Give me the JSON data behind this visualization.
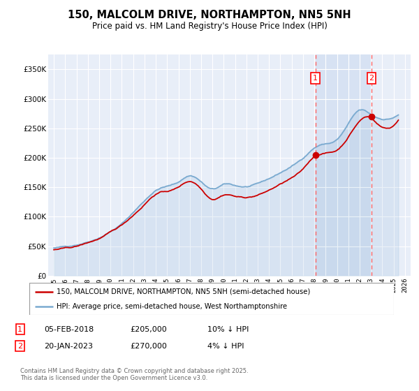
{
  "title": "150, MALCOLM DRIVE, NORTHAMPTON, NN5 5NH",
  "subtitle": "Price paid vs. HM Land Registry's House Price Index (HPI)",
  "red_label": "150, MALCOLM DRIVE, NORTHAMPTON, NN5 5NH (semi-detached house)",
  "blue_label": "HPI: Average price, semi-detached house, West Northamptonshire",
  "transaction1": {
    "label": "1",
    "date": "05-FEB-2018",
    "price": "£205,000",
    "note": "10% ↓ HPI"
  },
  "transaction2": {
    "label": "2",
    "date": "20-JAN-2023",
    "price": "£270,000",
    "note": "4% ↓ HPI"
  },
  "marker1_year": 2018.09,
  "marker2_year": 2023.05,
  "marker1_price": 205000,
  "marker2_price": 270000,
  "copyright": "Contains HM Land Registry data © Crown copyright and database right 2025.\nThis data is licensed under the Open Government Licence v3.0.",
  "ylim": [
    0,
    375000
  ],
  "xlim_start": 1994.5,
  "xlim_end": 2026.5,
  "yticks": [
    0,
    50000,
    100000,
    150000,
    200000,
    250000,
    300000,
    350000
  ],
  "ytick_labels": [
    "£0",
    "£50K",
    "£100K",
    "£150K",
    "£200K",
    "£250K",
    "£300K",
    "£350K"
  ],
  "xticks": [
    1995,
    1996,
    1997,
    1998,
    1999,
    2000,
    2001,
    2002,
    2003,
    2004,
    2005,
    2006,
    2007,
    2008,
    2009,
    2010,
    2011,
    2012,
    2013,
    2014,
    2015,
    2016,
    2017,
    2018,
    2019,
    2020,
    2021,
    2022,
    2023,
    2024,
    2025,
    2026
  ],
  "xtick_labels": [
    "1995",
    "1996",
    "1997",
    "1998",
    "1999",
    "2000",
    "2001",
    "2002",
    "2003",
    "2004",
    "2005",
    "2006",
    "2007",
    "2008",
    "2009",
    "2010",
    "2011",
    "2012",
    "2013",
    "2014",
    "2015",
    "2016",
    "2017",
    "2018",
    "2019",
    "2020",
    "2021",
    "2022",
    "2023",
    "2024",
    "2025",
    "2026"
  ],
  "background_color": "#ffffff",
  "plot_bg_color": "#e8eef8",
  "grid_color": "#ffffff",
  "red_color": "#cc0000",
  "blue_color": "#7aaad0",
  "shade_color": "#c8d8f0",
  "dashed_color": "#ff6666",
  "shade_between_dashes": true
}
